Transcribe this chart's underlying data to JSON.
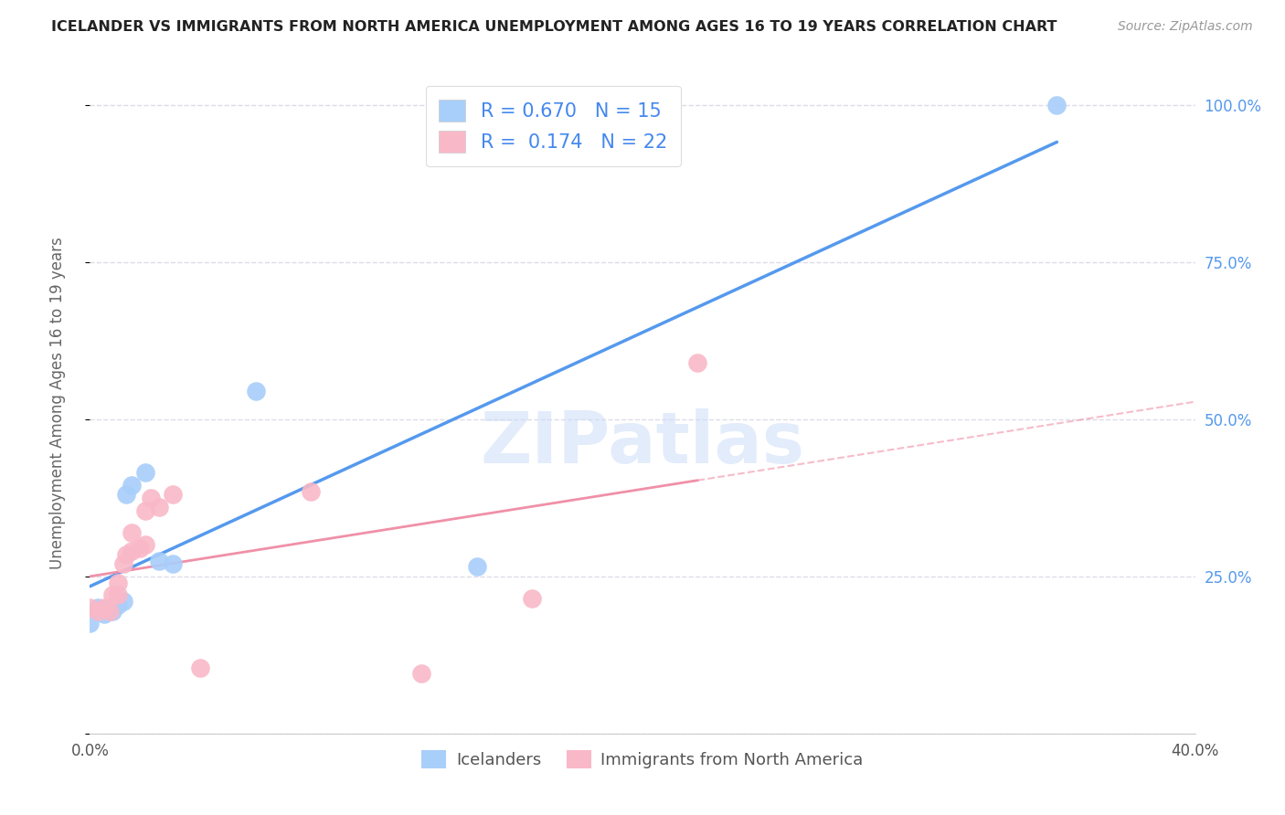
{
  "title": "ICELANDER VS IMMIGRANTS FROM NORTH AMERICA UNEMPLOYMENT AMONG AGES 16 TO 19 YEARS CORRELATION CHART",
  "source": "Source: ZipAtlas.com",
  "ylabel": "Unemployment Among Ages 16 to 19 years",
  "xlim": [
    0.0,
    0.4
  ],
  "ylim": [
    0.0,
    1.05
  ],
  "xticks": [
    0.0,
    0.05,
    0.1,
    0.15,
    0.2,
    0.25,
    0.3,
    0.35,
    0.4
  ],
  "yticks": [
    0.0,
    0.25,
    0.5,
    0.75,
    1.0
  ],
  "blue_R": 0.67,
  "blue_N": 15,
  "pink_R": 0.174,
  "pink_N": 22,
  "blue_color": "#A8CEFA",
  "pink_color": "#F9B8C8",
  "blue_line_color": "#5599EE",
  "pink_line_color": "#F090A8",
  "icelander_x": [
    0.0,
    0.003,
    0.005,
    0.007,
    0.008,
    0.01,
    0.012,
    0.013,
    0.015,
    0.02,
    0.025,
    0.03,
    0.06,
    0.14,
    0.35
  ],
  "icelander_y": [
    0.175,
    0.2,
    0.19,
    0.2,
    0.195,
    0.205,
    0.21,
    0.38,
    0.395,
    0.415,
    0.275,
    0.27,
    0.545,
    0.265,
    1.0
  ],
  "immigrant_x": [
    0.0,
    0.003,
    0.005,
    0.007,
    0.008,
    0.01,
    0.01,
    0.012,
    0.013,
    0.015,
    0.015,
    0.018,
    0.02,
    0.02,
    0.022,
    0.025,
    0.03,
    0.04,
    0.08,
    0.12,
    0.16,
    0.22
  ],
  "immigrant_y": [
    0.2,
    0.195,
    0.2,
    0.195,
    0.22,
    0.22,
    0.24,
    0.27,
    0.285,
    0.29,
    0.32,
    0.295,
    0.3,
    0.355,
    0.375,
    0.36,
    0.38,
    0.105,
    0.385,
    0.095,
    0.215,
    0.59
  ],
  "watermark": "ZIPatlas",
  "background_color": "#FFFFFF",
  "grid_color": "#DCDCE8",
  "legend_label_blue": "Icelanders",
  "legend_label_pink": "Immigrants from North America",
  "right_ytick_color": "#5599EE",
  "ytick_right_labels": [
    "",
    "25.0%",
    "50.0%",
    "75.0%",
    "100.0%"
  ]
}
